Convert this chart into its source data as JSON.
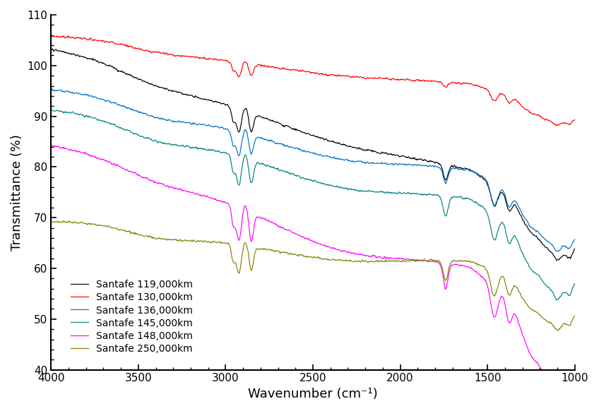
{
  "title": "",
  "xlabel": "Wavenumber (cm⁻¹)",
  "ylabel": "Transmittance (%)",
  "xlim": [
    4000,
    1000
  ],
  "ylim": [
    40,
    110
  ],
  "yticks": [
    40,
    50,
    60,
    70,
    80,
    90,
    100,
    110
  ],
  "xticks": [
    4000,
    3500,
    3000,
    2500,
    2000,
    1500,
    1000
  ],
  "legend_labels": [
    "Santafe 119,000km",
    "Santafe 130,000km",
    "Santafe 136,000km",
    "Santafe 145,000km",
    "Santafe 148,000km",
    "Santafe 250,000km"
  ],
  "colors": [
    "#000000",
    "#ff0000",
    "#0070c0",
    "#008080",
    "#ff00ff",
    "#808000"
  ],
  "base_levels": [
    102,
    104.5,
    94,
    90,
    83,
    68
  ],
  "figsize": [
    8.48,
    5.82
  ],
  "dpi": 100
}
